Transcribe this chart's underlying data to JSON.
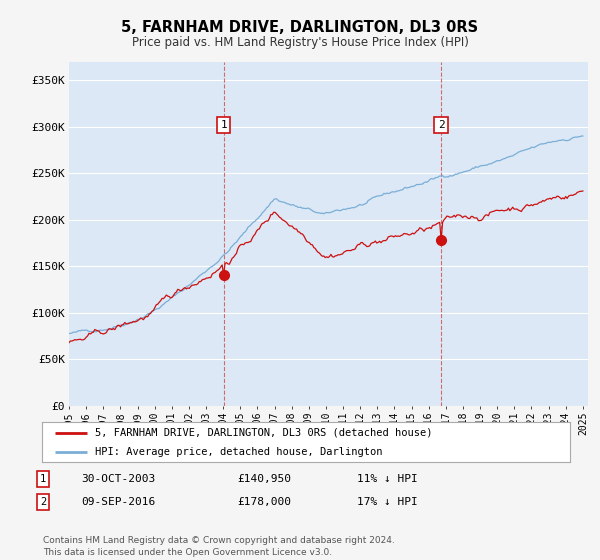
{
  "title": "5, FARNHAM DRIVE, DARLINGTON, DL3 0RS",
  "subtitle": "Price paid vs. HM Land Registry's House Price Index (HPI)",
  "ylim": [
    0,
    370000
  ],
  "yticks": [
    0,
    50000,
    100000,
    150000,
    200000,
    250000,
    300000,
    350000
  ],
  "ytick_labels": [
    "£0",
    "£50K",
    "£100K",
    "£150K",
    "£200K",
    "£250K",
    "£300K",
    "£350K"
  ],
  "hpi_color": "#7aaed6",
  "price_color": "#cc1111",
  "marker1_year": 2004.0,
  "marker2_year": 2016.75,
  "marker1_price": 140950,
  "marker2_price": 178000,
  "marker1_label": "30-OCT-2003",
  "marker1_price_str": "£140,950",
  "marker1_pct": "11% ↓ HPI",
  "marker2_label": "09-SEP-2016",
  "marker2_price_str": "£178,000",
  "marker2_pct": "17% ↓ HPI",
  "legend_line1": "5, FARNHAM DRIVE, DARLINGTON, DL3 0RS (detached house)",
  "legend_line2": "HPI: Average price, detached house, Darlington",
  "footer": "Contains HM Land Registry data © Crown copyright and database right 2024.\nThis data is licensed under the Open Government Licence v3.0.",
  "fig_bg": "#f5f5f5",
  "plot_bg": "#dce8f5"
}
